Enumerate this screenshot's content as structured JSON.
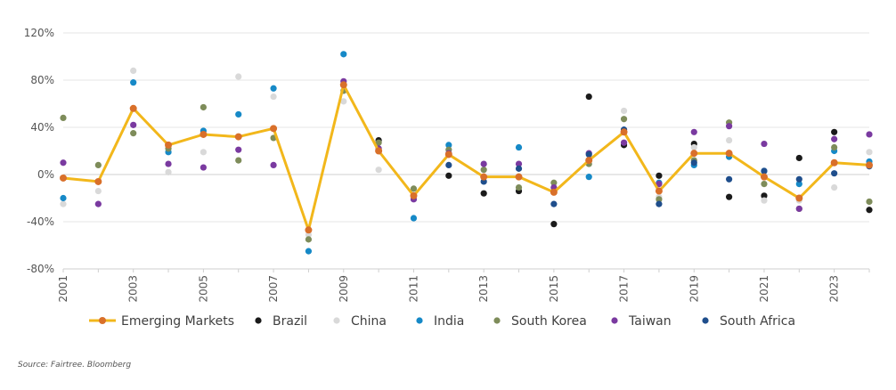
{
  "chart_data": {
    "type": "scatter",
    "x": [
      2001,
      2002,
      2003,
      2004,
      2005,
      2006,
      2007,
      2008,
      2009,
      2010,
      2011,
      2012,
      2013,
      2014,
      2015,
      2016,
      2017,
      2018,
      2019,
      2020,
      2021,
      2022,
      2023,
      2024
    ],
    "x_tick_labels": [
      "2001",
      "2003",
      "2005",
      "2007",
      "2009",
      "2011",
      "2013",
      "2015",
      "2017",
      "2019",
      "2021",
      "2023"
    ],
    "y_tick_labels": [
      "120%",
      "80%",
      "40%",
      "0%",
      "-40%",
      "-80%"
    ],
    "ylim": [
      -80,
      120
    ],
    "y_ticks": [
      120,
      80,
      40,
      0,
      -40,
      -80
    ],
    "grid": "horizontal",
    "legend_position": "bottom",
    "series": [
      {
        "name": "Emerging Markets",
        "kind": "line",
        "color": "#F2B71B",
        "marker_color": "#D9702A",
        "values": [
          -3,
          -6,
          56,
          25,
          34,
          32,
          39,
          -47,
          76,
          20,
          -18,
          17,
          -2,
          -2,
          -15,
          12,
          36,
          -14,
          18,
          18,
          -2,
          -20,
          10,
          8
        ]
      },
      {
        "name": "Brazil",
        "kind": "dots",
        "color": "#1A1A1A",
        "values": [
          null,
          null,
          null,
          null,
          null,
          null,
          null,
          null,
          null,
          29,
          null,
          -1,
          -16,
          -14,
          -42,
          66,
          25,
          -1,
          26,
          -19,
          -18,
          14,
          36,
          -30
        ]
      },
      {
        "name": "China",
        "kind": "dots",
        "color": "#D9D9D9",
        "values": [
          -25,
          -14,
          88,
          2,
          19,
          83,
          66,
          -51,
          62,
          4,
          -18,
          null,
          null,
          null,
          null,
          null,
          54,
          -19,
          23,
          29,
          -22,
          -22,
          -11,
          19
        ]
      },
      {
        "name": "India",
        "kind": "dots",
        "color": "#1689C7",
        "values": [
          -20,
          null,
          78,
          19,
          37,
          51,
          73,
          -65,
          102,
          null,
          -37,
          25,
          null,
          23,
          null,
          -2,
          null,
          -7,
          8,
          15,
          3,
          -8,
          20,
          11
        ]
      },
      {
        "name": "South Korea",
        "kind": "dots",
        "color": "#7E8C5A",
        "values": [
          48,
          8,
          35,
          22,
          57,
          12,
          31,
          -55,
          71,
          27,
          -12,
          21,
          4,
          -11,
          -7,
          9,
          47,
          -21,
          12,
          44,
          -8,
          -29,
          23,
          -23
        ]
      },
      {
        "name": "Taiwan",
        "kind": "dots",
        "color": "#7A3AA0",
        "values": [
          10,
          -25,
          42,
          9,
          6,
          21,
          8,
          -47,
          79,
          22,
          -21,
          18,
          9,
          9,
          -11,
          18,
          27,
          -8,
          36,
          41,
          26,
          -29,
          30,
          34
        ]
      },
      {
        "name": "South Africa",
        "kind": "dots",
        "color": "#1F4E8C",
        "values": [
          null,
          null,
          null,
          null,
          null,
          null,
          null,
          null,
          null,
          null,
          null,
          8,
          -6,
          5,
          -25,
          17,
          38,
          -25,
          10,
          -4,
          3,
          -4,
          1,
          7
        ]
      }
    ]
  },
  "legend": {
    "items": [
      {
        "label": "Emerging Markets",
        "type": "line",
        "color": "#F2B71B",
        "marker": "#D9702A"
      },
      {
        "label": "Brazil",
        "type": "dot",
        "color": "#1A1A1A"
      },
      {
        "label": "China",
        "type": "dot",
        "color": "#D9D9D9"
      },
      {
        "label": "India",
        "type": "dot",
        "color": "#1689C7"
      },
      {
        "label": "South Korea",
        "type": "dot",
        "color": "#7E8C5A"
      },
      {
        "label": "Taiwan",
        "type": "dot",
        "color": "#7A3AA0"
      },
      {
        "label": "South Africa",
        "type": "dot",
        "color": "#1F4E8C"
      }
    ]
  },
  "source": "Source: Fairtree. Bloomberg"
}
